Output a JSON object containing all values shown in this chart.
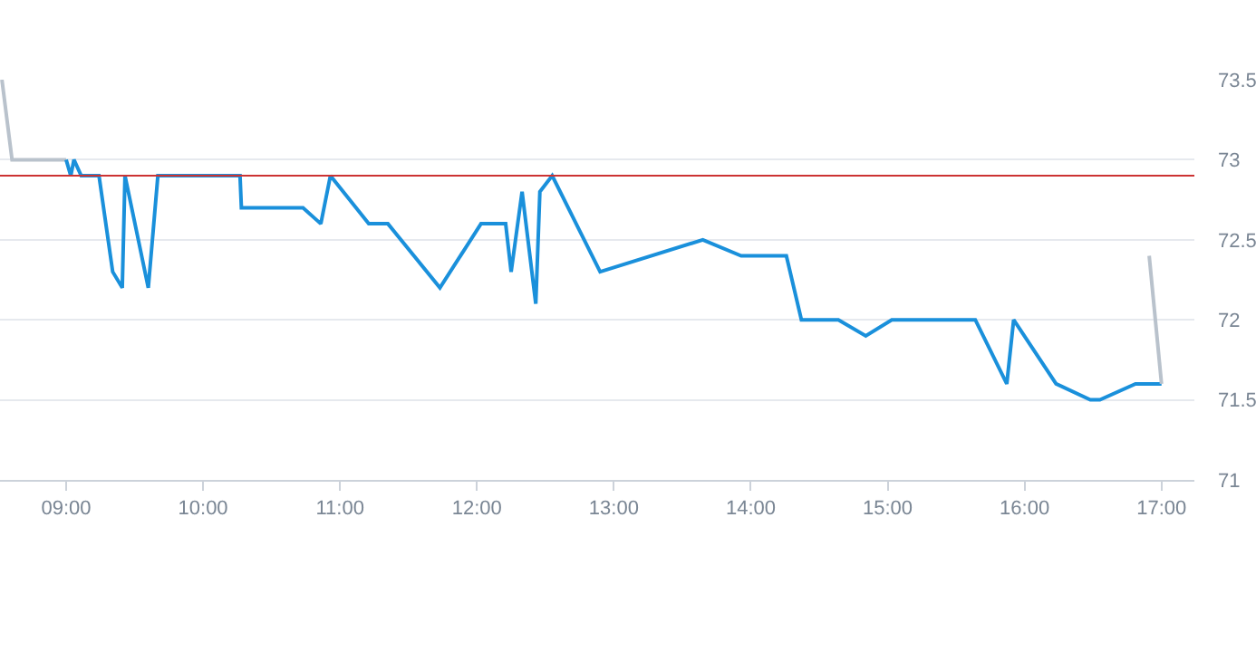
{
  "chart_data": {
    "type": "line",
    "x": [
      9.0,
      9.034,
      9.057,
      9.11,
      9.24,
      9.34,
      9.41,
      9.43,
      9.6,
      9.67,
      10.27,
      10.28,
      10.73,
      10.86,
      10.93,
      11.21,
      11.35,
      11.73,
      12.03,
      12.21,
      12.25,
      12.33,
      12.43,
      12.46,
      12.55,
      12.9,
      13.65,
      13.93,
      14.26,
      14.37,
      14.64,
      14.84,
      15.03,
      15.64,
      15.87,
      15.92,
      16.23,
      16.48,
      16.55,
      16.81,
      17.0
    ],
    "series": [
      {
        "color": "#b9c2cc",
        "x": [
          8.531,
          8.605,
          9.0
        ],
        "values": [
          73.5,
          73.0,
          73.0
        ]
      },
      {
        "color": "#1a90db",
        "values": [
          73.0,
          72.9,
          73.0,
          72.9,
          72.9,
          72.3,
          72.2,
          72.9,
          72.2,
          72.9,
          72.9,
          72.7,
          72.7,
          72.6,
          72.9,
          72.6,
          72.6,
          72.2,
          72.6,
          72.6,
          72.3,
          72.8,
          72.1,
          72.8,
          72.9,
          72.3,
          72.5,
          72.4,
          72.4,
          72.0,
          72.0,
          71.9,
          72.0,
          72.0,
          71.6,
          72.0,
          71.6,
          71.5,
          71.5,
          71.6,
          71.6
        ]
      },
      {
        "color": "#b9c2cc",
        "x": [
          16.91,
          17.0
        ],
        "values": [
          72.4,
          71.6
        ]
      }
    ],
    "xlim": [
      8.517,
      17.24
    ],
    "xticks": [
      {
        "value": 9,
        "label": "09:00"
      },
      {
        "value": 10,
        "label": "10:00"
      },
      {
        "value": 11,
        "label": "11:00"
      },
      {
        "value": 12,
        "label": "12:00"
      },
      {
        "value": 13,
        "label": "13:00"
      },
      {
        "value": 14,
        "label": "14:00"
      },
      {
        "value": 15,
        "label": "15:00"
      },
      {
        "value": 16,
        "label": "16:00"
      },
      {
        "value": 17,
        "label": "17:00"
      }
    ],
    "ylim": [
      71,
      73.5
    ],
    "yticks": [
      71,
      71.5,
      72,
      72.5,
      73,
      73.5
    ],
    "ref_lines": [
      {
        "axis": "y",
        "value": 72.9,
        "color": "#cc3333"
      }
    ],
    "grid": "y",
    "marker": "none",
    "line_style": "solid"
  }
}
